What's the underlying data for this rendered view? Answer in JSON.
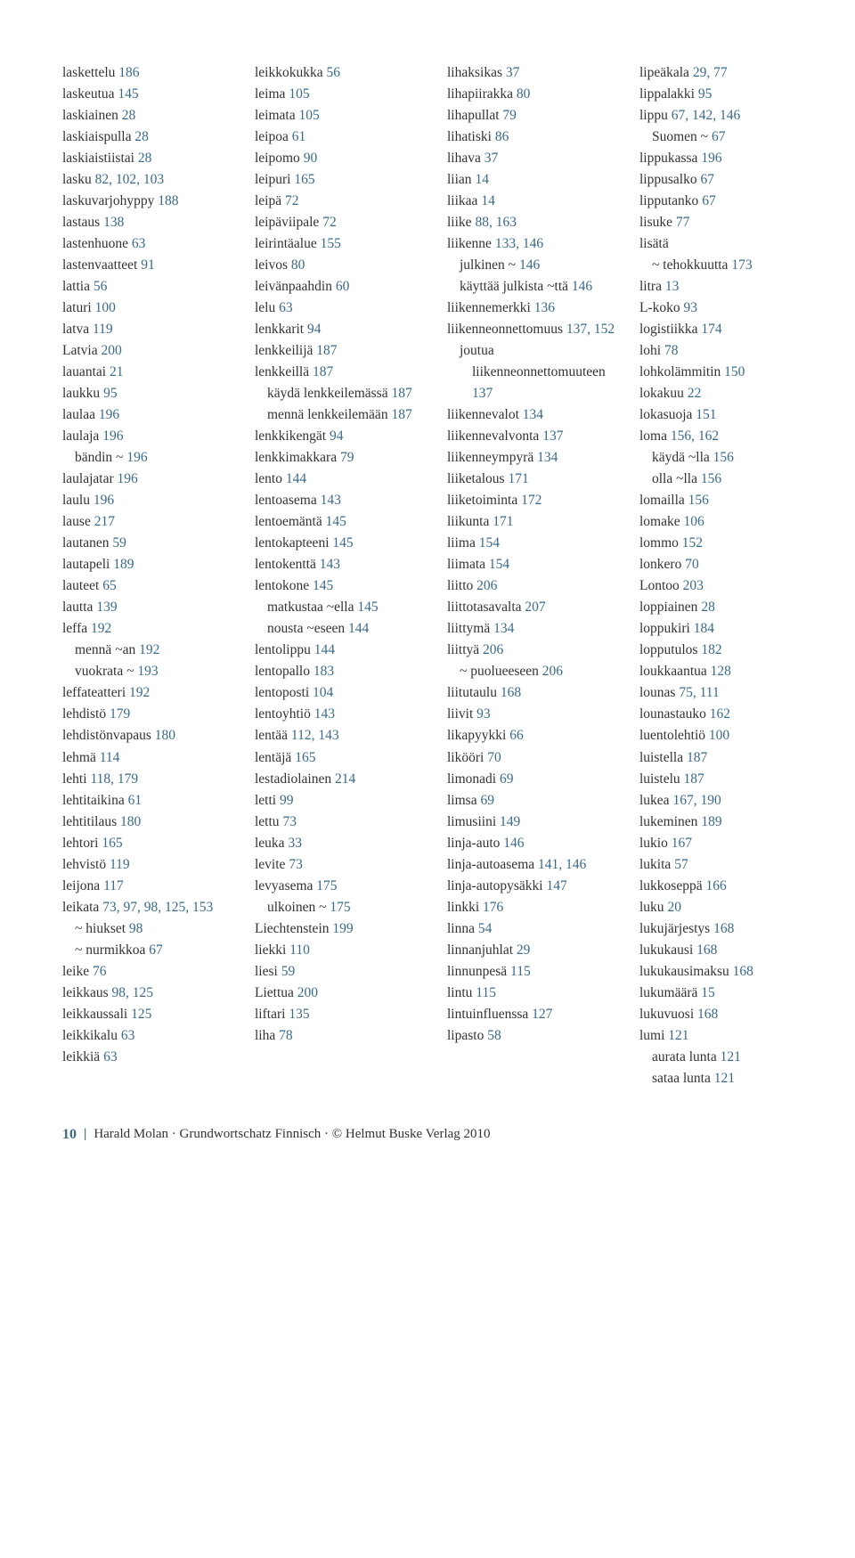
{
  "colors": {
    "text": "#333333",
    "accent": "#3a6a8a",
    "background": "#ffffff"
  },
  "fontsize_pt": 12,
  "columns": [
    [
      {
        "w": "laskettelu",
        "p": "186"
      },
      {
        "w": "laskeutua",
        "p": "145"
      },
      {
        "w": "laskiainen",
        "p": "28"
      },
      {
        "w": "laskiaispulla",
        "p": "28"
      },
      {
        "w": "laskiaistiistai",
        "p": "28"
      },
      {
        "w": "lasku",
        "p": "82, 102, 103"
      },
      {
        "w": "laskuvarjohyppy",
        "p": "188"
      },
      {
        "w": "lastaus",
        "p": "138"
      },
      {
        "w": "lastenhuone",
        "p": "63"
      },
      {
        "w": "lastenvaatteet",
        "p": "91"
      },
      {
        "w": "lattia",
        "p": "56"
      },
      {
        "w": "laturi",
        "p": "100"
      },
      {
        "w": "latva",
        "p": "119"
      },
      {
        "w": "Latvia",
        "p": "200"
      },
      {
        "w": "lauantai",
        "p": "21"
      },
      {
        "w": "laukku",
        "p": "95"
      },
      {
        "w": "laulaa",
        "p": "196"
      },
      {
        "w": "laulaja",
        "p": "196"
      },
      {
        "w": "bändin ~",
        "p": "196",
        "sub": true
      },
      {
        "w": "laulajatar",
        "p": "196"
      },
      {
        "w": "laulu",
        "p": "196"
      },
      {
        "w": "lause",
        "p": "217"
      },
      {
        "w": "lautanen",
        "p": "59"
      },
      {
        "w": "lautapeli",
        "p": "189"
      },
      {
        "w": "lauteet",
        "p": "65"
      },
      {
        "w": "lautta",
        "p": "139"
      },
      {
        "w": "leffa",
        "p": "192"
      },
      {
        "w": "mennä ~an",
        "p": "192",
        "sub": true
      },
      {
        "w": "vuokrata ~",
        "p": "193",
        "sub": true
      },
      {
        "w": "leffateatteri",
        "p": "192"
      },
      {
        "w": "lehdistö",
        "p": "179"
      },
      {
        "w": "lehdistönvapaus",
        "p": "180"
      },
      {
        "w": "lehmä",
        "p": "114"
      },
      {
        "w": "lehti",
        "p": "118, 179"
      },
      {
        "w": "lehtitaikina",
        "p": "61"
      },
      {
        "w": "lehtitilaus",
        "p": "180"
      },
      {
        "w": "lehtori",
        "p": "165"
      },
      {
        "w": "lehvistö",
        "p": "119"
      },
      {
        "w": "leijona",
        "p": "117"
      },
      {
        "w": "leikata",
        "p": "73, 97, 98, 125, 153"
      },
      {
        "w": "~ hiukset",
        "p": "98",
        "sub": true
      },
      {
        "w": "~ nurmikkoa",
        "p": "67",
        "sub": true
      },
      {
        "w": "leike",
        "p": "76"
      },
      {
        "w": "leikkaus",
        "p": "98, 125"
      },
      {
        "w": "leikkaussali",
        "p": "125"
      },
      {
        "w": "leikkikalu",
        "p": "63"
      },
      {
        "w": "leikkiä",
        "p": "63"
      }
    ],
    [
      {
        "w": "leikkokukka",
        "p": "56"
      },
      {
        "w": "leima",
        "p": "105"
      },
      {
        "w": "leimata",
        "p": "105"
      },
      {
        "w": "leipoa",
        "p": "61"
      },
      {
        "w": "leipomo",
        "p": "90"
      },
      {
        "w": "leipuri",
        "p": "165"
      },
      {
        "w": "leipä",
        "p": "72"
      },
      {
        "w": "leipäviipale",
        "p": "72"
      },
      {
        "w": "leirintäalue",
        "p": "155"
      },
      {
        "w": "leivos",
        "p": "80"
      },
      {
        "w": "leivänpaahdin",
        "p": "60"
      },
      {
        "w": "lelu",
        "p": "63"
      },
      {
        "w": "lenkkarit",
        "p": "94"
      },
      {
        "w": "lenkkeilijä",
        "p": "187"
      },
      {
        "w": "lenkkeillä",
        "p": "187"
      },
      {
        "w": "käydä lenkkeilemässä",
        "p": "187",
        "sub": true
      },
      {
        "w": "mennä lenkkeilemään",
        "p": "187",
        "sub": true
      },
      {
        "w": "lenkkikengät",
        "p": "94"
      },
      {
        "w": "lenkkimakkara",
        "p": "79"
      },
      {
        "w": "lento",
        "p": "144"
      },
      {
        "w": "lentoasema",
        "p": "143"
      },
      {
        "w": "lentoemäntä",
        "p": "145"
      },
      {
        "w": "lentokapteeni",
        "p": "145"
      },
      {
        "w": "lentokenttä",
        "p": "143"
      },
      {
        "w": "lentokone",
        "p": "145"
      },
      {
        "w": "matkustaa ~ella",
        "p": "145",
        "sub": true
      },
      {
        "w": "nousta ~eseen",
        "p": "144",
        "sub": true
      },
      {
        "w": "lentolippu",
        "p": "144"
      },
      {
        "w": "lentopallo",
        "p": "183"
      },
      {
        "w": "lentoposti",
        "p": "104"
      },
      {
        "w": "lentoyhtiö",
        "p": "143"
      },
      {
        "w": "lentää",
        "p": "112, 143"
      },
      {
        "w": "lentäjä",
        "p": "165"
      },
      {
        "w": "lestadiolainen",
        "p": "214"
      },
      {
        "w": "letti",
        "p": "99"
      },
      {
        "w": "lettu",
        "p": "73"
      },
      {
        "w": "leuka",
        "p": "33"
      },
      {
        "w": "levite",
        "p": "73"
      },
      {
        "w": "levyasema",
        "p": "175"
      },
      {
        "w": "ulkoinen ~",
        "p": "175",
        "sub": true
      },
      {
        "w": "Liechtenstein",
        "p": "199"
      },
      {
        "w": "liekki",
        "p": "110"
      },
      {
        "w": "liesi",
        "p": "59"
      },
      {
        "w": "Liettua",
        "p": "200"
      },
      {
        "w": "liftari",
        "p": "135"
      },
      {
        "w": "liha",
        "p": "78"
      }
    ],
    [
      {
        "w": "lihaksikas",
        "p": "37"
      },
      {
        "w": "lihapiirakka",
        "p": "80"
      },
      {
        "w": "lihapullat",
        "p": "79"
      },
      {
        "w": "lihatiski",
        "p": "86"
      },
      {
        "w": "lihava",
        "p": "37"
      },
      {
        "w": "liian",
        "p": "14"
      },
      {
        "w": "liikaa",
        "p": "14"
      },
      {
        "w": "liike",
        "p": "88, 163"
      },
      {
        "w": "liikenne",
        "p": "133, 146"
      },
      {
        "w": "julkinen ~",
        "p": "146",
        "sub": true
      },
      {
        "w": "käyttää julkista ~ttä",
        "p": "146",
        "sub": true
      },
      {
        "w": "liikennemerkki",
        "p": "136"
      },
      {
        "w": "liikenneonnettomuus",
        "p": "137, 152"
      },
      {
        "w": "joutua liikenneonnettomuuteen",
        "p": "137",
        "sub": true
      },
      {
        "w": "liikennevalot",
        "p": "134"
      },
      {
        "w": "liikennevalvonta",
        "p": "137"
      },
      {
        "w": "liikenneympyrä",
        "p": "134"
      },
      {
        "w": "liiketalous",
        "p": "171"
      },
      {
        "w": "liiketoiminta",
        "p": "172"
      },
      {
        "w": "liikunta",
        "p": "171"
      },
      {
        "w": "liima",
        "p": "154"
      },
      {
        "w": "liimata",
        "p": "154"
      },
      {
        "w": "liitto",
        "p": "206"
      },
      {
        "w": "liittotasavalta",
        "p": "207"
      },
      {
        "w": "liittymä",
        "p": "134"
      },
      {
        "w": "liittyä",
        "p": "206"
      },
      {
        "w": "~ puolueeseen",
        "p": "206",
        "sub": true
      },
      {
        "w": "liitutaulu",
        "p": "168"
      },
      {
        "w": "liivit",
        "p": "93"
      },
      {
        "w": "likapyykki",
        "p": "66"
      },
      {
        "w": "likööri",
        "p": "70"
      },
      {
        "w": "limonadi",
        "p": "69"
      },
      {
        "w": "limsa",
        "p": "69"
      },
      {
        "w": "limusiini",
        "p": "149"
      },
      {
        "w": "linja-auto",
        "p": "146"
      },
      {
        "w": "linja-autoasema",
        "p": "141, 146"
      },
      {
        "w": "linja-autopysäkki",
        "p": "147"
      },
      {
        "w": "linkki",
        "p": "176"
      },
      {
        "w": "linna",
        "p": "54"
      },
      {
        "w": "linnanjuhlat",
        "p": "29"
      },
      {
        "w": "linnunpesä",
        "p": "115"
      },
      {
        "w": "lintu",
        "p": "115"
      },
      {
        "w": "lintuinfluenssa",
        "p": "127"
      },
      {
        "w": "lipasto",
        "p": "58"
      }
    ],
    [
      {
        "w": "lipeäkala",
        "p": "29, 77"
      },
      {
        "w": "lippalakki",
        "p": "95"
      },
      {
        "w": "lippu",
        "p": "67, 142, 146"
      },
      {
        "w": "Suomen ~",
        "p": "67",
        "sub": true
      },
      {
        "w": "lippukassa",
        "p": "196"
      },
      {
        "w": "lippusalko",
        "p": "67"
      },
      {
        "w": "lipputanko",
        "p": "67"
      },
      {
        "w": "lisuke",
        "p": "77"
      },
      {
        "w": "lisätä",
        "p": ""
      },
      {
        "w": "~ tehokkuutta",
        "p": "173",
        "sub": true
      },
      {
        "w": "litra",
        "p": "13"
      },
      {
        "w": "L-koko",
        "p": "93"
      },
      {
        "w": "logistiikka",
        "p": "174"
      },
      {
        "w": "lohi",
        "p": "78"
      },
      {
        "w": "lohkolämmitin",
        "p": "150"
      },
      {
        "w": "lokakuu",
        "p": "22"
      },
      {
        "w": "lokasuoja",
        "p": "151"
      },
      {
        "w": "loma",
        "p": "156, 162"
      },
      {
        "w": "käydä ~lla",
        "p": "156",
        "sub": true
      },
      {
        "w": "olla ~lla",
        "p": "156",
        "sub": true
      },
      {
        "w": "lomailla",
        "p": "156"
      },
      {
        "w": "lomake",
        "p": "106"
      },
      {
        "w": "lommo",
        "p": "152"
      },
      {
        "w": "lonkero",
        "p": "70"
      },
      {
        "w": "Lontoo",
        "p": "203"
      },
      {
        "w": "loppiainen",
        "p": "28"
      },
      {
        "w": "loppukiri",
        "p": "184"
      },
      {
        "w": "lopputulos",
        "p": "182"
      },
      {
        "w": "loukkaantua",
        "p": "128"
      },
      {
        "w": "lounas",
        "p": "75, 111"
      },
      {
        "w": "lounastauko",
        "p": "162"
      },
      {
        "w": "luentolehtiö",
        "p": "100"
      },
      {
        "w": "luistella",
        "p": "187"
      },
      {
        "w": "luistelu",
        "p": "187"
      },
      {
        "w": "lukea",
        "p": "167, 190"
      },
      {
        "w": "lukeminen",
        "p": "189"
      },
      {
        "w": "lukio",
        "p": "167"
      },
      {
        "w": "lukita",
        "p": "57"
      },
      {
        "w": "lukkoseppä",
        "p": "166"
      },
      {
        "w": "luku",
        "p": "20"
      },
      {
        "w": "lukujärjestys",
        "p": "168"
      },
      {
        "w": "lukukausi",
        "p": "168"
      },
      {
        "w": "lukukausimaksu",
        "p": "168"
      },
      {
        "w": "lukumäärä",
        "p": "15"
      },
      {
        "w": "lukuvuosi",
        "p": "168"
      },
      {
        "w": "lumi",
        "p": "121"
      },
      {
        "w": "aurata lunta",
        "p": "121",
        "sub": true
      },
      {
        "w": "sataa lunta",
        "p": "121",
        "sub": true
      }
    ]
  ],
  "footer": {
    "page": "10",
    "text": "Harald Molan · Grundwortschatz Finnisch · © Helmut Buske Verlag 2010"
  }
}
